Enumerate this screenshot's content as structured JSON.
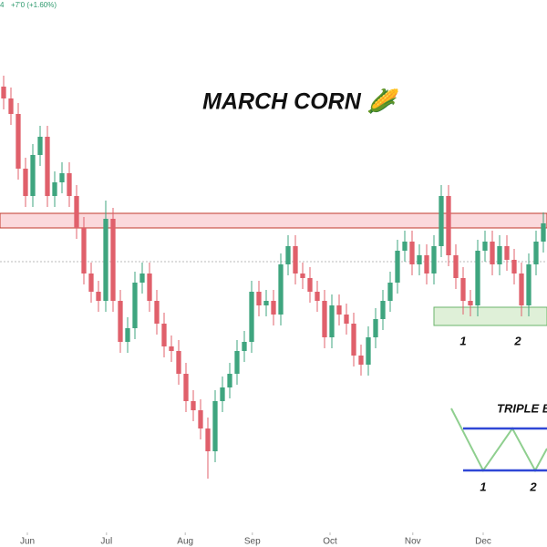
{
  "chart_data": {
    "type": "candlestick",
    "title": "MARCH CORN 🌽",
    "header_fragment": "4",
    "header_change": "+7'0 (+1.60%)",
    "bull_color": "#3fa57f",
    "bear_color": "#e0606b",
    "xlim": [
      -0.5,
      74.5
    ],
    "ylim": [
      420,
      480
    ],
    "xticks": [
      {
        "value": 3.25,
        "label": "Jun"
      },
      {
        "value": 14.1,
        "label": "Jul"
      },
      {
        "value": 24.9,
        "label": "Aug"
      },
      {
        "value": 34.1,
        "label": "Sep"
      },
      {
        "value": 44.75,
        "label": "Oct"
      },
      {
        "value": 56.1,
        "label": "Nov"
      },
      {
        "value": 65.75,
        "label": "Dec"
      }
    ],
    "resistance_zone": [
      455,
      456.6
    ],
    "level_line": 451.3,
    "support_zone": [
      444.3,
      446.3
    ],
    "support_zone_x": [
      59,
      74.5
    ],
    "bottom_labels": [
      {
        "x": 63,
        "text": "1"
      },
      {
        "x": 70.5,
        "text": "2"
      }
    ],
    "inset": {
      "title": "TRIPLE BO",
      "labels": [
        "1",
        "2"
      ]
    },
    "candles": [
      [
        470.5,
        471.7,
        468,
        469.2
      ],
      [
        469.2,
        470.4,
        466.3,
        467.5
      ],
      [
        467.5,
        468.7,
        460.3,
        461.5
      ],
      [
        461.5,
        462.7,
        457.3,
        458.5
      ],
      [
        458.5,
        464.2,
        457.3,
        463
      ],
      [
        463,
        466.2,
        461.8,
        465
      ],
      [
        465,
        466.2,
        457.3,
        458.5
      ],
      [
        458.5,
        461.2,
        457.3,
        460
      ],
      [
        460,
        462.2,
        458.8,
        461
      ],
      [
        461,
        462.2,
        457.3,
        458.5
      ],
      [
        458.5,
        459.7,
        453.8,
        455
      ],
      [
        455,
        456.2,
        448.8,
        450
      ],
      [
        450,
        451.2,
        446.8,
        448
      ],
      [
        448,
        449.2,
        445.8,
        447
      ],
      [
        447,
        458,
        445.8,
        456
      ],
      [
        456,
        457.2,
        445.8,
        447
      ],
      [
        447,
        448.2,
        441.3,
        442.5
      ],
      [
        442.5,
        445.2,
        441.3,
        444
      ],
      [
        444,
        450.2,
        442.8,
        449
      ],
      [
        449,
        451.2,
        447.8,
        450
      ],
      [
        450,
        451.2,
        445.8,
        447
      ],
      [
        447,
        448.2,
        443.3,
        444.5
      ],
      [
        444.5,
        445.7,
        440.8,
        442
      ],
      [
        442,
        443.2,
        440.3,
        441.5
      ],
      [
        441.5,
        442.7,
        437.8,
        439
      ],
      [
        439,
        440.2,
        434.8,
        436
      ],
      [
        436,
        437.2,
        433.8,
        435
      ],
      [
        435,
        436.2,
        431.8,
        433
      ],
      [
        433,
        434.2,
        427.5,
        430.5
      ],
      [
        430.5,
        437.2,
        429.3,
        436
      ],
      [
        436,
        438.7,
        434.8,
        437.5
      ],
      [
        437.5,
        440.2,
        436.3,
        439
      ],
      [
        439,
        442.7,
        437.8,
        441.5
      ],
      [
        441.5,
        443.7,
        440.3,
        442.5
      ],
      [
        442.5,
        449.2,
        441.3,
        448
      ],
      [
        448,
        449.2,
        445.3,
        446.5
      ],
      [
        446.5,
        448.2,
        445.3,
        447
      ],
      [
        447,
        448.2,
        444.3,
        445.5
      ],
      [
        445.5,
        452.2,
        444.3,
        451
      ],
      [
        451,
        454.2,
        449.8,
        453
      ],
      [
        453,
        454.2,
        448.8,
        450
      ],
      [
        450,
        451.2,
        448.3,
        449.5
      ],
      [
        449.5,
        450.7,
        446.8,
        448
      ],
      [
        448,
        449.2,
        445.8,
        447
      ],
      [
        447,
        448.2,
        441.8,
        443
      ],
      [
        443,
        447.7,
        441.8,
        446.5
      ],
      [
        446.5,
        447.7,
        444.3,
        445.5
      ],
      [
        445.5,
        446.7,
        443.3,
        444.5
      ],
      [
        444.5,
        445.7,
        439.8,
        441
      ],
      [
        441,
        442.2,
        438.8,
        440
      ],
      [
        440,
        444.2,
        438.8,
        443
      ],
      [
        443,
        446.2,
        441.8,
        445
      ],
      [
        445,
        448.2,
        443.8,
        447
      ],
      [
        447,
        450.2,
        445.8,
        449
      ],
      [
        449,
        453.7,
        447.8,
        452.5
      ],
      [
        452.5,
        454.7,
        451.3,
        453.5
      ],
      [
        453.5,
        454.7,
        449.8,
        451
      ],
      [
        451,
        453.2,
        449.8,
        452
      ],
      [
        452,
        453.2,
        448.8,
        450
      ],
      [
        450,
        454.2,
        448.8,
        453
      ],
      [
        453,
        459.7,
        451.8,
        458.5
      ],
      [
        458.5,
        459.7,
        450.8,
        452
      ],
      [
        452,
        453.2,
        448.3,
        449.5
      ],
      [
        449.5,
        450.7,
        445.5,
        447
      ],
      [
        447,
        448.2,
        445.3,
        446.5
      ],
      [
        446.5,
        453.7,
        445.3,
        452.5
      ],
      [
        452.5,
        454.7,
        451.3,
        453.5
      ],
      [
        453.5,
        454.7,
        449.8,
        451
      ],
      [
        451,
        454.2,
        449.8,
        453
      ],
      [
        453,
        454.2,
        450.3,
        451.5
      ],
      [
        451.5,
        452.7,
        448.8,
        450
      ],
      [
        450,
        451.2,
        445.3,
        446.5
      ],
      [
        446.5,
        452.2,
        445.3,
        451
      ],
      [
        451,
        454.7,
        449.8,
        453.5
      ],
      [
        453.5,
        456.7,
        452.3,
        455.5
      ]
    ]
  }
}
